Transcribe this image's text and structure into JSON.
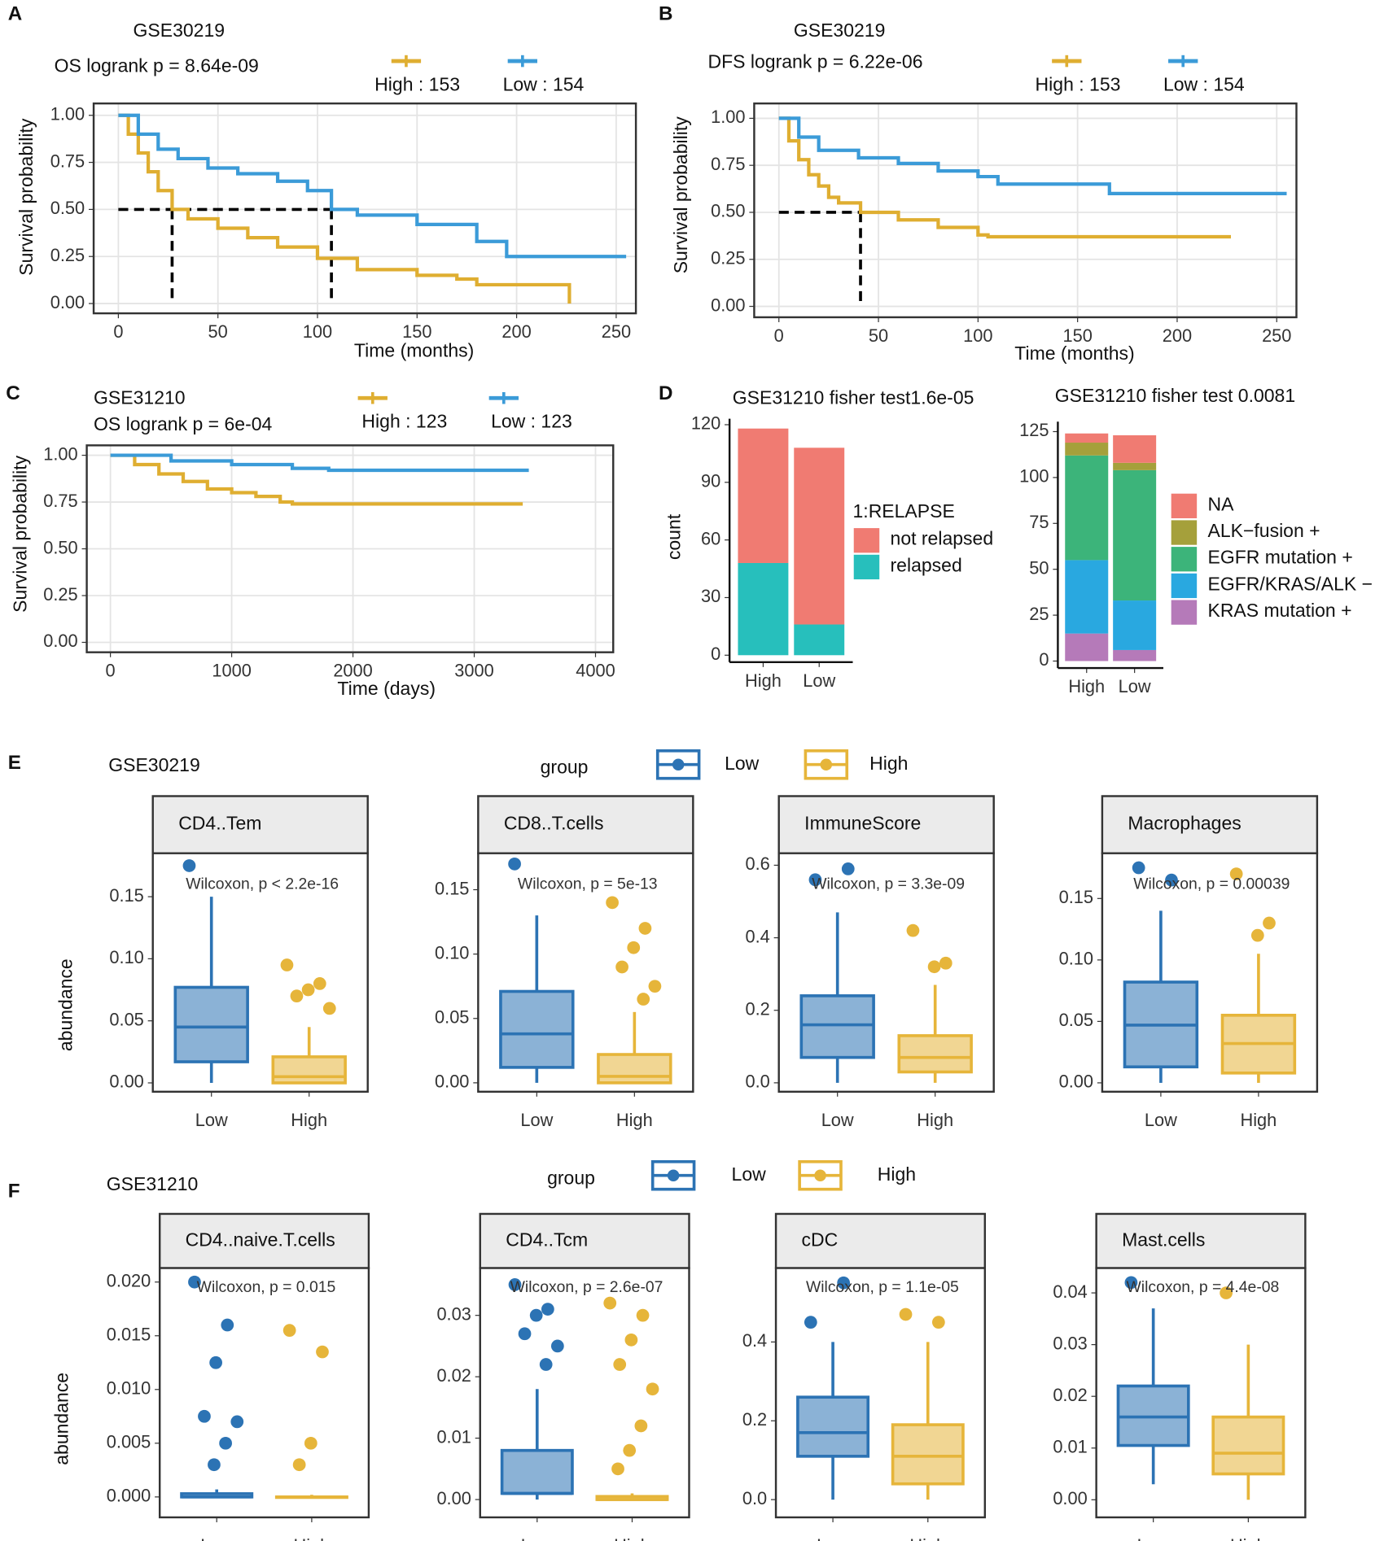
{
  "figure": {
    "rows": [
      {
        "panel": "E",
        "title": "GSE30219",
        "legend_title": "group",
        "legend": [
          {
            "name": "Low",
            "color": "#2c73b4"
          },
          {
            "name": "High",
            "color": "#e6b53a"
          }
        ]
      },
      {
        "panel": "F",
        "title": "GSE31210",
        "legend_title": "group",
        "legend": [
          {
            "name": "Low",
            "color": "#2c73b4"
          },
          {
            "name": "High",
            "color": "#e6b53a"
          }
        ]
      }
    ]
  },
  "chart_data": [
    {
      "type": "step",
      "panel": "A",
      "title": "GSE30219",
      "subtitle": "OS logrank p =  8.64e-09",
      "xlabel": "Time (months)",
      "ylabel": "Survival probability",
      "xlim": [
        -12.4,
        259.9
      ],
      "ylim": [
        -0.052,
        1.063
      ],
      "xticks": [
        0,
        50,
        100,
        150,
        200,
        250
      ],
      "yticks": [
        {
          "value": 0,
          "label": "0.00"
        },
        {
          "value": 0.25,
          "label": "0.25"
        },
        {
          "value": 0.5,
          "label": "0.50"
        },
        {
          "value": 0.75,
          "label": "0.75"
        },
        {
          "value": 1,
          "label": "1.00"
        }
      ],
      "grid": true,
      "median_level": 0.5,
      "median_x": [
        27,
        107
      ],
      "series": [
        {
          "name": "High :  153",
          "color": "#dfae31",
          "x": [
            0,
            5,
            10,
            15,
            20,
            27,
            35,
            50,
            65,
            80,
            100,
            120,
            150,
            170,
            180,
            226,
            226.5
          ],
          "values": [
            1,
            0.9,
            0.8,
            0.7,
            0.6,
            0.5,
            0.45,
            0.4,
            0.35,
            0.3,
            0.24,
            0.18,
            0.15,
            0.13,
            0.1,
            0.1,
            0
          ]
        },
        {
          "name": "Low :  154",
          "color": "#3b9bd8",
          "x": [
            0,
            10,
            20,
            30,
            45,
            60,
            80,
            95,
            107,
            120,
            150,
            180,
            195,
            255
          ],
          "values": [
            1,
            0.9,
            0.82,
            0.77,
            0.72,
            0.69,
            0.65,
            0.6,
            0.5,
            0.47,
            0.42,
            0.33,
            0.25,
            0.25
          ]
        }
      ]
    },
    {
      "type": "step",
      "panel": "B",
      "title": "GSE30219",
      "subtitle": "DFS logrank p =  6.22e-06",
      "xlabel": "Time (months)",
      "ylabel": "Survival probability",
      "xlim": [
        -12.4,
        259.9
      ],
      "ylim": [
        -0.058,
        1.079
      ],
      "xticks": [
        0,
        50,
        100,
        150,
        200,
        250
      ],
      "yticks": [
        {
          "value": 0,
          "label": "0.00"
        },
        {
          "value": 0.25,
          "label": "0.25"
        },
        {
          "value": 0.5,
          "label": "0.50"
        },
        {
          "value": 0.75,
          "label": "0.75"
        },
        {
          "value": 1,
          "label": "1.00"
        }
      ],
      "grid": true,
      "median_level": 0.5,
      "median_x": [
        41
      ],
      "series": [
        {
          "name": "High :  153",
          "color": "#dfae31",
          "x": [
            0,
            5,
            10,
            15,
            20,
            25,
            30,
            41,
            60,
            80,
            100,
            105,
            227
          ],
          "values": [
            1,
            0.88,
            0.78,
            0.7,
            0.64,
            0.58,
            0.55,
            0.5,
            0.46,
            0.42,
            0.38,
            0.37,
            0.37
          ]
        },
        {
          "name": "Low :  154",
          "color": "#3b9bd8",
          "x": [
            0,
            10,
            20,
            40,
            60,
            80,
            100,
            110,
            166,
            255
          ],
          "values": [
            1,
            0.9,
            0.83,
            0.79,
            0.76,
            0.72,
            0.69,
            0.65,
            0.6,
            0.6
          ]
        }
      ]
    },
    {
      "type": "step",
      "panel": "C",
      "title": "GSE31210",
      "subtitle": "OS logrank p =   6e-04",
      "xlabel": "Time (days)",
      "ylabel": "Survival probability",
      "xlim": [
        -195,
        4146
      ],
      "ylim": [
        -0.053,
        1.053
      ],
      "xticks": [
        0,
        1000,
        2000,
        3000,
        4000
      ],
      "yticks": [
        {
          "value": 0,
          "label": "0.00"
        },
        {
          "value": 0.25,
          "label": "0.25"
        },
        {
          "value": 0.5,
          "label": "0.50"
        },
        {
          "value": 0.75,
          "label": "0.75"
        },
        {
          "value": 1,
          "label": "1.00"
        }
      ],
      "grid": true,
      "series": [
        {
          "name": "High :  123",
          "color": "#dfae31",
          "x": [
            0,
            200,
            400,
            600,
            800,
            1000,
            1200,
            1400,
            1500,
            3400
          ],
          "values": [
            1,
            0.95,
            0.9,
            0.86,
            0.82,
            0.8,
            0.78,
            0.75,
            0.74,
            0.74
          ]
        },
        {
          "name": "Low :  123",
          "color": "#3b9bd8",
          "x": [
            0,
            500,
            1000,
            1500,
            1800,
            3450
          ],
          "values": [
            1,
            0.97,
            0.95,
            0.93,
            0.92,
            0.92
          ]
        }
      ]
    },
    {
      "type": "bar",
      "panel": "D",
      "stacked": true,
      "title": "GSE31210 fisher test1.6e-05",
      "ylabel": "count",
      "legend_title": "1:RELAPSE",
      "categories": [
        "High",
        "Low"
      ],
      "ylim": [
        -3.6,
        123.1
      ],
      "yticks": [
        0,
        30,
        60,
        90,
        120
      ],
      "series": [
        {
          "name": "relapsed",
          "color": "#27bfbc",
          "values": [
            48,
            16
          ]
        },
        {
          "name": "not relapsed",
          "color": "#f07b72",
          "values": [
            70,
            92
          ]
        }
      ]
    },
    {
      "type": "bar",
      "stacked": true,
      "title": "GSE31210 fisher test 0.0081",
      "categories": [
        "High",
        "Low"
      ],
      "ylim": [
        -3.8,
        130.4
      ],
      "yticks": [
        0,
        25,
        50,
        75,
        100,
        125
      ],
      "series": [
        {
          "name": "KRAS mutation +",
          "color": "#b57ab9",
          "values": [
            15,
            6
          ]
        },
        {
          "name": "EGFR/KRAS/ALK −",
          "color": "#29a8e0",
          "values": [
            40,
            27
          ]
        },
        {
          "name": "EGFR mutation +",
          "color": "#3cb47a",
          "values": [
            57,
            71
          ]
        },
        {
          "name": "ALK−fusion +",
          "color": "#a5a03b",
          "values": [
            7,
            4
          ]
        },
        {
          "name": "NA",
          "color": "#f07b72",
          "values": [
            5,
            15
          ]
        }
      ]
    },
    {
      "type": "box",
      "row": 0,
      "strip": "CD4..Tem",
      "annotation": "Wilcoxon, p < 2.2e-16",
      "ylabel": "abundance",
      "categories": [
        "Low",
        "High"
      ],
      "ylim": [
        -0.0071,
        0.185
      ],
      "yticks": [
        {
          "value": 0,
          "label": "0.00"
        },
        {
          "value": 0.05,
          "label": "0.05"
        },
        {
          "value": 0.1,
          "label": "0.10"
        },
        {
          "value": 0.15,
          "label": "0.15"
        }
      ],
      "boxes": [
        {
          "stats": [
            0,
            0.017,
            0.045,
            0.077,
            0.15
          ],
          "outliers": [
            0.175
          ]
        },
        {
          "stats": [
            0,
            0,
            0.005,
            0.021,
            0.045
          ],
          "outliers": [
            0.095,
            0.08,
            0.075,
            0.07,
            0.06
          ]
        }
      ]
    },
    {
      "type": "box",
      "row": 0,
      "strip": "CD8..T.cells",
      "annotation": "Wilcoxon, p = 5e-13",
      "categories": [
        "Low",
        "High"
      ],
      "ylim": [
        -0.0069,
        0.1783
      ],
      "yticks": [
        {
          "value": 0,
          "label": "0.00"
        },
        {
          "value": 0.05,
          "label": "0.05"
        },
        {
          "value": 0.1,
          "label": "0.10"
        },
        {
          "value": 0.15,
          "label": "0.15"
        }
      ],
      "boxes": [
        {
          "stats": [
            0,
            0.012,
            0.038,
            0.071,
            0.13
          ],
          "outliers": [
            0.17
          ]
        },
        {
          "stats": [
            0,
            0,
            0.005,
            0.022,
            0.055
          ],
          "outliers": [
            0.14,
            0.12,
            0.105,
            0.09,
            0.075,
            0.065
          ]
        }
      ]
    },
    {
      "type": "box",
      "row": 0,
      "strip": "ImmuneScore",
      "annotation": "Wilcoxon, p = 3.3e-09",
      "categories": [
        "Low",
        "High"
      ],
      "ylim": [
        -0.0245,
        0.633
      ],
      "yticks": [
        {
          "value": 0,
          "label": "0.0"
        },
        {
          "value": 0.2,
          "label": "0.2"
        },
        {
          "value": 0.4,
          "label": "0.4"
        },
        {
          "value": 0.6,
          "label": "0.6"
        }
      ],
      "boxes": [
        {
          "stats": [
            0,
            0.07,
            0.16,
            0.24,
            0.47
          ],
          "outliers": [
            0.56,
            0.59
          ]
        },
        {
          "stats": [
            0,
            0.03,
            0.07,
            0.13,
            0.27
          ],
          "outliers": [
            0.42,
            0.33,
            0.32
          ]
        }
      ]
    },
    {
      "type": "box",
      "row": 0,
      "strip": "Macrophages",
      "annotation": "Wilcoxon, p = 0.00039",
      "categories": [
        "Low",
        "High"
      ],
      "ylim": [
        -0.0072,
        0.1868
      ],
      "yticks": [
        {
          "value": 0,
          "label": "0.00"
        },
        {
          "value": 0.05,
          "label": "0.05"
        },
        {
          "value": 0.1,
          "label": "0.10"
        },
        {
          "value": 0.15,
          "label": "0.15"
        }
      ],
      "boxes": [
        {
          "stats": [
            0,
            0.013,
            0.047,
            0.082,
            0.14
          ],
          "outliers": [
            0.175,
            0.165
          ]
        },
        {
          "stats": [
            0,
            0.008,
            0.032,
            0.055,
            0.105
          ],
          "outliers": [
            0.17,
            0.13,
            0.12
          ]
        }
      ]
    },
    {
      "type": "box",
      "row": 1,
      "strip": "CD4..naive.T.cells",
      "annotation": "Wilcoxon, p = 0.015",
      "ylabel": "abundance",
      "categories": [
        "Low",
        "High"
      ],
      "ylim": [
        -0.0019,
        0.0213
      ],
      "yticks": [
        {
          "value": 0,
          "label": "0.000"
        },
        {
          "value": 0.005,
          "label": "0.005"
        },
        {
          "value": 0.01,
          "label": "0.010"
        },
        {
          "value": 0.015,
          "label": "0.015"
        },
        {
          "value": 0.02,
          "label": "0.020"
        }
      ],
      "boxes": [
        {
          "stats": [
            0,
            0,
            0,
            0.0003,
            0.0007
          ],
          "outliers": [
            0.02,
            0.016,
            0.0125,
            0.0075,
            0.007,
            0.005,
            0.003
          ]
        },
        {
          "stats": [
            0,
            0,
            0,
            0,
            0.0002
          ],
          "outliers": [
            0.0155,
            0.0135,
            0.005,
            0.003
          ]
        }
      ]
    },
    {
      "type": "box",
      "row": 1,
      "strip": "CD4..Tcm",
      "annotation": "Wilcoxon, p = 2.6e-07",
      "categories": [
        "Low",
        "High"
      ],
      "ylim": [
        -0.0029,
        0.0377
      ],
      "yticks": [
        {
          "value": 0,
          "label": "0.00"
        },
        {
          "value": 0.01,
          "label": "0.01"
        },
        {
          "value": 0.02,
          "label": "0.02"
        },
        {
          "value": 0.03,
          "label": "0.03"
        }
      ],
      "boxes": [
        {
          "stats": [
            0,
            0.001,
            0.001,
            0.008,
            0.018
          ],
          "outliers": [
            0.035,
            0.031,
            0.03,
            0.027,
            0.025,
            0.022
          ]
        },
        {
          "stats": [
            0,
            0,
            0,
            0.0005,
            0.001
          ],
          "outliers": [
            0.032,
            0.03,
            0.026,
            0.022,
            0.018,
            0.012,
            0.008,
            0.005
          ]
        }
      ]
    },
    {
      "type": "box",
      "row": 1,
      "strip": "cDC",
      "annotation": "Wilcoxon, p = 1.1e-05",
      "categories": [
        "Low",
        "High"
      ],
      "ylim": [
        -0.045,
        0.5875
      ],
      "yticks": [
        {
          "value": 0,
          "label": "0.0"
        },
        {
          "value": 0.2,
          "label": "0.2"
        },
        {
          "value": 0.4,
          "label": "0.4"
        }
      ],
      "boxes": [
        {
          "stats": [
            0,
            0.11,
            0.17,
            0.26,
            0.4
          ],
          "outliers": [
            0.45,
            0.55
          ]
        },
        {
          "stats": [
            0,
            0.04,
            0.11,
            0.19,
            0.4
          ],
          "outliers": [
            0.47,
            0.45
          ]
        }
      ]
    },
    {
      "type": "box",
      "row": 1,
      "strip": "Mast.cells",
      "annotation": "Wilcoxon, p = 4.4e-08",
      "categories": [
        "Low",
        "High"
      ],
      "ylim": [
        -0.0034,
        0.0448
      ],
      "yticks": [
        {
          "value": 0,
          "label": "0.00"
        },
        {
          "value": 0.01,
          "label": "0.01"
        },
        {
          "value": 0.02,
          "label": "0.02"
        },
        {
          "value": 0.03,
          "label": "0.03"
        },
        {
          "value": 0.04,
          "label": "0.04"
        }
      ],
      "boxes": [
        {
          "stats": [
            0.003,
            0.0105,
            0.016,
            0.022,
            0.037
          ],
          "outliers": [
            0.042
          ]
        },
        {
          "stats": [
            0,
            0.005,
            0.009,
            0.016,
            0.03
          ],
          "outliers": [
            0.04
          ]
        }
      ]
    }
  ]
}
